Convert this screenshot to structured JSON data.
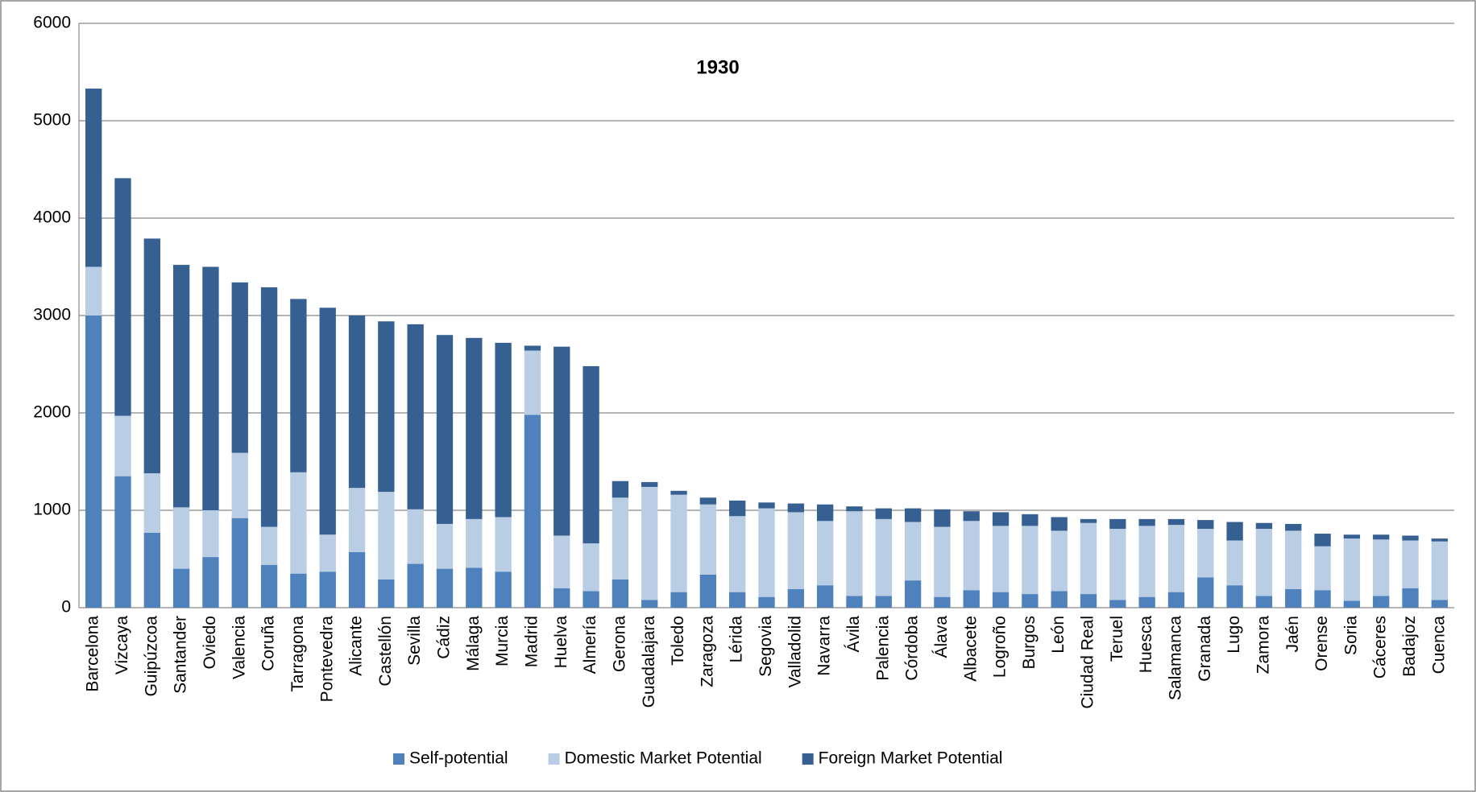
{
  "chart_data": {
    "type": "stacked-bar",
    "title": "1930",
    "categories": [
      "Barcelona",
      "Vizcaya",
      "Guipúzcoa",
      "Santander",
      "Oviedo",
      "Valencia",
      "Coruña",
      "Tarragona",
      "Pontevedra",
      "Alicante",
      "Castellón",
      "Sevilla",
      "Cádiz",
      "Málaga",
      "Murcia",
      "Madrid",
      "Huelva",
      "Almería",
      "Gerona",
      "Guadalajara",
      "Toledo",
      "Zaragoza",
      "Lérida",
      "Segovia",
      "Valladolid",
      "Navarra",
      "Ávila",
      "Palencia",
      "Córdoba",
      "Álava",
      "Albacete",
      "Logroño",
      "Burgos",
      "León",
      "Ciudad Real",
      "Teruel",
      "Huesca",
      "Salamanca",
      "Granada",
      "Lugo",
      "Zamora",
      "Jaén",
      "Orense",
      "Soria",
      "Cáceres",
      "Badajoz",
      "Cuenca"
    ],
    "series": [
      {
        "name": "Self-potential",
        "color": "#4f81bd",
        "values": [
          3000,
          1350,
          770,
          400,
          520,
          920,
          440,
          350,
          370,
          570,
          290,
          450,
          400,
          410,
          370,
          1980,
          200,
          170,
          290,
          80,
          160,
          340,
          160,
          110,
          190,
          230,
          120,
          120,
          280,
          110,
          180,
          160,
          140,
          170,
          140,
          80,
          110,
          160,
          310,
          230,
          120,
          190,
          180,
          70,
          120,
          200,
          80
        ]
      },
      {
        "name": "Domestic Market Potential",
        "color": "#b9cde5",
        "values": [
          500,
          620,
          610,
          630,
          480,
          670,
          390,
          1040,
          380,
          660,
          900,
          560,
          460,
          500,
          560,
          660,
          540,
          490,
          840,
          1160,
          1000,
          720,
          780,
          910,
          790,
          660,
          870,
          790,
          600,
          720,
          710,
          680,
          700,
          620,
          730,
          730,
          730,
          690,
          500,
          460,
          690,
          600,
          450,
          640,
          580,
          490,
          600
        ]
      },
      {
        "name": "Foreign Market Potential",
        "color": "#376092",
        "values": [
          1830,
          2440,
          2410,
          2490,
          2500,
          1750,
          2460,
          1780,
          2330,
          1770,
          1750,
          1900,
          1940,
          1860,
          1790,
          50,
          1940,
          1820,
          170,
          50,
          40,
          70,
          160,
          60,
          90,
          170,
          50,
          110,
          140,
          180,
          100,
          140,
          120,
          140,
          40,
          100,
          70,
          60,
          90,
          190,
          60,
          70,
          130,
          40,
          50,
          50,
          30
        ]
      }
    ],
    "ylim": [
      0,
      6000
    ],
    "yticks": [
      0,
      1000,
      2000,
      3000,
      4000,
      5000,
      6000
    ],
    "grid": true,
    "legend": "bottom"
  }
}
